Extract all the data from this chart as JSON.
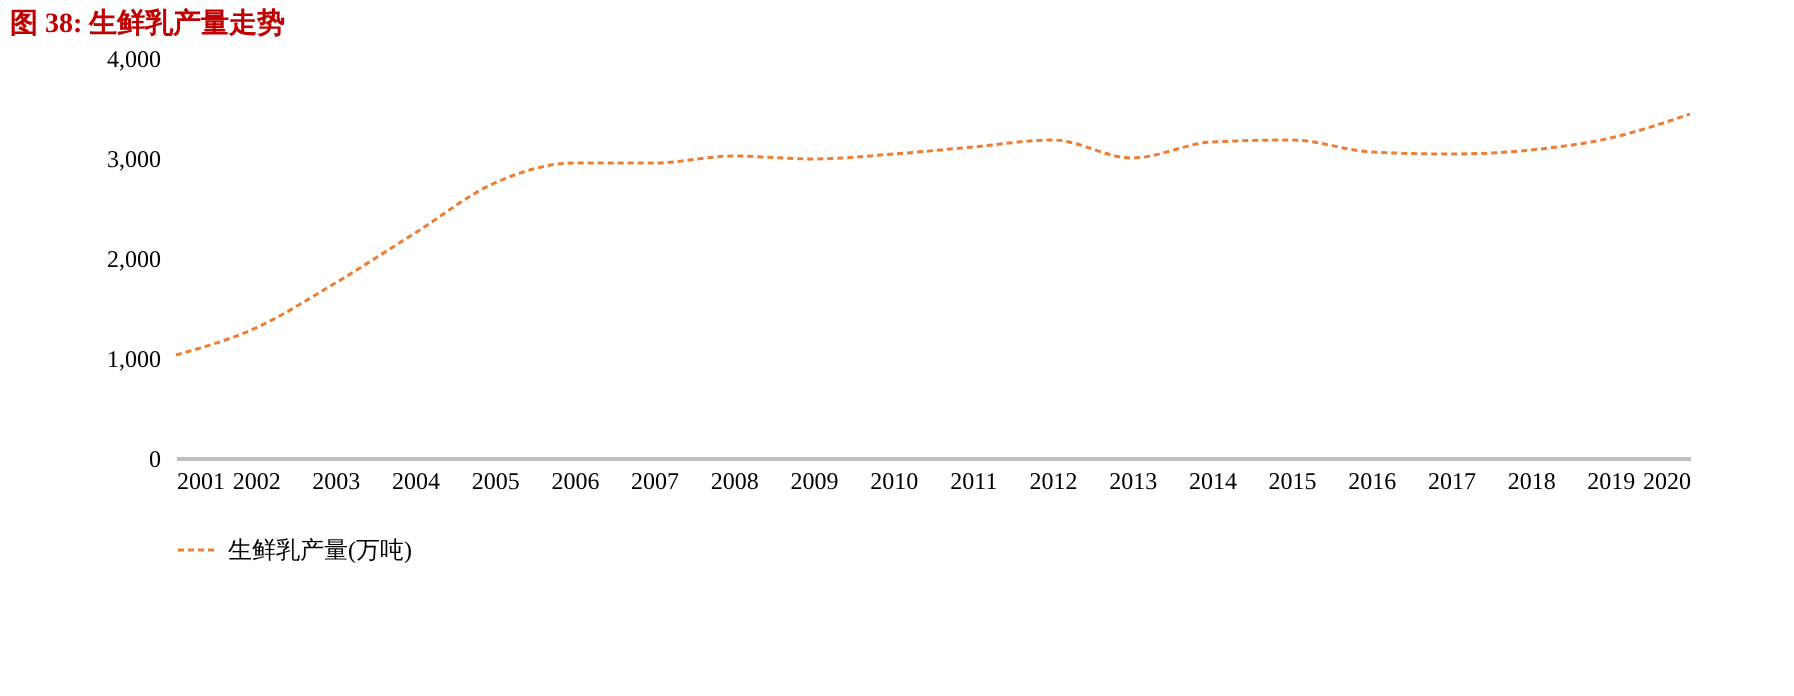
{
  "chart_data": {
    "type": "line",
    "title": "图 38:  生鲜乳产量走势",
    "categories": [
      "2001",
      "2002",
      "2003",
      "2004",
      "2005",
      "2006",
      "2007",
      "2008",
      "2009",
      "2010",
      "2011",
      "2012",
      "2013",
      "2014",
      "2015",
      "2016",
      "2017",
      "2018",
      "2019",
      "2020"
    ],
    "series": [
      {
        "name": "生鲜乳产量(万吨)",
        "color": "#ed7d31",
        "values": [
          1030,
          1300,
          1750,
          2250,
          2750,
          2950,
          2950,
          3020,
          2990,
          3040,
          3110,
          3180,
          3000,
          3160,
          3180,
          3060,
          3040,
          3080,
          3200,
          3440
        ]
      }
    ],
    "ylim": [
      0,
      4000
    ],
    "yticks": [
      0,
      {
        "value": 1000,
        "label": "1,000"
      },
      {
        "value": 2000,
        "label": "2,000"
      },
      {
        "value": 3000,
        "label": "3,000"
      },
      {
        "value": 4000,
        "label": "4,000"
      }
    ],
    "grid": false,
    "legend": "bottom",
    "line_style": "dashed",
    "marker": "none"
  }
}
